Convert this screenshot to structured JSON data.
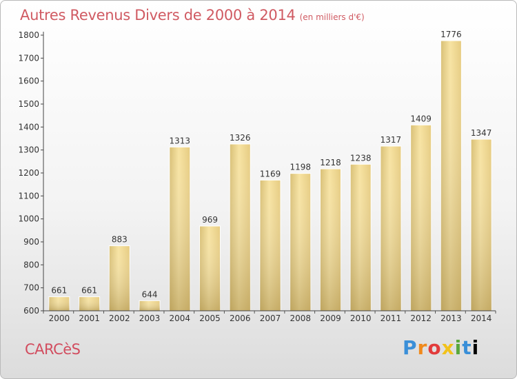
{
  "title": "Autres Revenus Divers de 2000 à 2014",
  "subtitle": "(en milliers d'€)",
  "commune": "CARCèS",
  "brand": "Proxiti",
  "colors": {
    "title": "#d05a62",
    "bar_light": "#f6e1a0",
    "bar_dark": "#c2a860",
    "axis": "#333333"
  },
  "chart_data": {
    "type": "bar",
    "title": "Autres Revenus Divers de 2000 à 2014",
    "subtitle": "(en milliers d'€)",
    "categories": [
      "2000",
      "2001",
      "2002",
      "2003",
      "2004",
      "2005",
      "2006",
      "2007",
      "2008",
      "2009",
      "2010",
      "2011",
      "2012",
      "2013",
      "2014"
    ],
    "values": [
      661,
      661,
      883,
      644,
      1313,
      969,
      1326,
      1169,
      1198,
      1218,
      1238,
      1317,
      1409,
      1776,
      1347
    ],
    "ylim": [
      600,
      1800
    ],
    "yticks": [
      600,
      700,
      800,
      900,
      1000,
      1100,
      1200,
      1300,
      1400,
      1500,
      1600,
      1700,
      1800
    ],
    "grid": false,
    "legend": "none",
    "xlabel": "",
    "ylabel": ""
  }
}
